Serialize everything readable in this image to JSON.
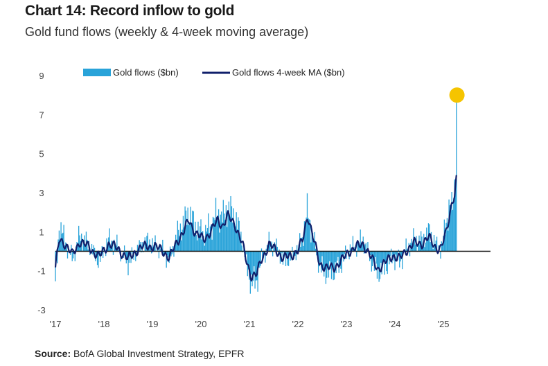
{
  "chart_data": {
    "type": "bar",
    "title": "Chart 14: Record inflow to gold",
    "subtitle": "Gold fund flows (weekly & 4-week moving average)",
    "source_label": "Source:",
    "source_text": "BofA Global Investment Strategy, EPFR",
    "xlabel": "",
    "ylabel": "",
    "ylim": [
      -3,
      9
    ],
    "y_ticks": [
      9,
      7,
      5,
      3,
      1,
      -1,
      -3
    ],
    "x_tick_labels": [
      "'17",
      "'18",
      "'19",
      "'20",
      "'21",
      "'22",
      "'23",
      "'24",
      "'25"
    ],
    "x_tick_years": [
      2017,
      2018,
      2019,
      2020,
      2021,
      2022,
      2023,
      2024,
      2025
    ],
    "x_range": [
      2017.0,
      2026.0
    ],
    "grid": false,
    "legend_position": "top-left",
    "highlight": {
      "x": 2025.28,
      "y": 8.0,
      "color": "#f5c400"
    },
    "series": [
      {
        "name": "Gold flows ($bn)",
        "kind": "bar",
        "color": "#29a3d9",
        "anchors": [
          [
            2017.0,
            -1.9
          ],
          [
            2017.08,
            1.4
          ],
          [
            2017.2,
            0.5
          ],
          [
            2017.35,
            -0.4
          ],
          [
            2017.5,
            0.8
          ],
          [
            2017.7,
            0.3
          ],
          [
            2017.9,
            -0.5
          ],
          [
            2018.1,
            0.6
          ],
          [
            2018.3,
            0.2
          ],
          [
            2018.5,
            -0.6
          ],
          [
            2018.7,
            0.1
          ],
          [
            2018.9,
            0.5
          ],
          [
            2019.2,
            0.1
          ],
          [
            2019.35,
            -0.5
          ],
          [
            2019.5,
            0.8
          ],
          [
            2019.65,
            1.5
          ],
          [
            2019.75,
            2.0
          ],
          [
            2019.9,
            1.2
          ],
          [
            2020.05,
            0.9
          ],
          [
            2020.2,
            1.3
          ],
          [
            2020.35,
            2.0
          ],
          [
            2020.45,
            1.7
          ],
          [
            2020.55,
            2.2
          ],
          [
            2020.7,
            1.8
          ],
          [
            2020.85,
            0.6
          ],
          [
            2020.95,
            -0.8
          ],
          [
            2021.05,
            -1.7
          ],
          [
            2021.15,
            -1.5
          ],
          [
            2021.25,
            -0.5
          ],
          [
            2021.4,
            0.4
          ],
          [
            2021.55,
            0.2
          ],
          [
            2021.7,
            -0.5
          ],
          [
            2021.85,
            -0.3
          ],
          [
            2022.0,
            0.1
          ],
          [
            2022.1,
            0.8
          ],
          [
            2022.2,
            2.1
          ],
          [
            2022.3,
            0.9
          ],
          [
            2022.45,
            -0.8
          ],
          [
            2022.6,
            -1.1
          ],
          [
            2022.75,
            -1.0
          ],
          [
            2022.9,
            -0.6
          ],
          [
            2023.05,
            0.1
          ],
          [
            2023.2,
            0.3
          ],
          [
            2023.35,
            0.6
          ],
          [
            2023.5,
            -0.4
          ],
          [
            2023.65,
            -1.1
          ],
          [
            2023.8,
            -0.8
          ],
          [
            2023.95,
            -0.3
          ],
          [
            2024.1,
            -0.6
          ],
          [
            2024.25,
            0.2
          ],
          [
            2024.4,
            0.6
          ],
          [
            2024.55,
            0.5
          ],
          [
            2024.7,
            1.0
          ],
          [
            2024.85,
            0.3
          ],
          [
            2024.95,
            0.1
          ],
          [
            2025.05,
            1.3
          ],
          [
            2025.12,
            2.4
          ],
          [
            2025.18,
            2.0
          ],
          [
            2025.23,
            3.4
          ],
          [
            2025.28,
            8.0
          ]
        ]
      },
      {
        "name": "Gold flows 4-week MA ($bn)",
        "kind": "line",
        "color": "#101f6b",
        "anchors": [
          [
            2017.0,
            -0.9
          ],
          [
            2017.08,
            0.6
          ],
          [
            2017.2,
            0.4
          ],
          [
            2017.35,
            -0.2
          ],
          [
            2017.5,
            0.5
          ],
          [
            2017.7,
            0.2
          ],
          [
            2017.9,
            -0.3
          ],
          [
            2018.1,
            0.4
          ],
          [
            2018.3,
            0.1
          ],
          [
            2018.5,
            -0.4
          ],
          [
            2018.7,
            0.1
          ],
          [
            2018.9,
            0.3
          ],
          [
            2019.2,
            0.1
          ],
          [
            2019.35,
            -0.4
          ],
          [
            2019.5,
            0.5
          ],
          [
            2019.65,
            1.0
          ],
          [
            2019.75,
            1.6
          ],
          [
            2019.9,
            0.9
          ],
          [
            2020.05,
            0.6
          ],
          [
            2020.2,
            1.0
          ],
          [
            2020.35,
            1.6
          ],
          [
            2020.45,
            1.3
          ],
          [
            2020.55,
            1.8
          ],
          [
            2020.7,
            1.4
          ],
          [
            2020.85,
            0.4
          ],
          [
            2020.95,
            -0.6
          ],
          [
            2021.05,
            -1.3
          ],
          [
            2021.15,
            -1.2
          ],
          [
            2021.25,
            -0.4
          ],
          [
            2021.4,
            0.3
          ],
          [
            2021.55,
            0.1
          ],
          [
            2021.7,
            -0.4
          ],
          [
            2021.85,
            -0.2
          ],
          [
            2022.0,
            0.0
          ],
          [
            2022.1,
            0.6
          ],
          [
            2022.2,
            1.9
          ],
          [
            2022.3,
            0.8
          ],
          [
            2022.45,
            -0.6
          ],
          [
            2022.6,
            -0.9
          ],
          [
            2022.75,
            -0.8
          ],
          [
            2022.9,
            -0.5
          ],
          [
            2023.05,
            0.0
          ],
          [
            2023.2,
            0.2
          ],
          [
            2023.35,
            0.4
          ],
          [
            2023.5,
            -0.3
          ],
          [
            2023.65,
            -0.9
          ],
          [
            2023.8,
            -0.6
          ],
          [
            2023.95,
            -0.2
          ],
          [
            2024.1,
            -0.4
          ],
          [
            2024.25,
            0.1
          ],
          [
            2024.4,
            0.4
          ],
          [
            2024.55,
            0.4
          ],
          [
            2024.7,
            0.7
          ],
          [
            2024.85,
            0.2
          ],
          [
            2024.95,
            0.1
          ],
          [
            2025.05,
            0.9
          ],
          [
            2025.12,
            1.8
          ],
          [
            2025.18,
            2.6
          ],
          [
            2025.23,
            2.8
          ],
          [
            2025.28,
            3.9
          ]
        ]
      }
    ]
  }
}
